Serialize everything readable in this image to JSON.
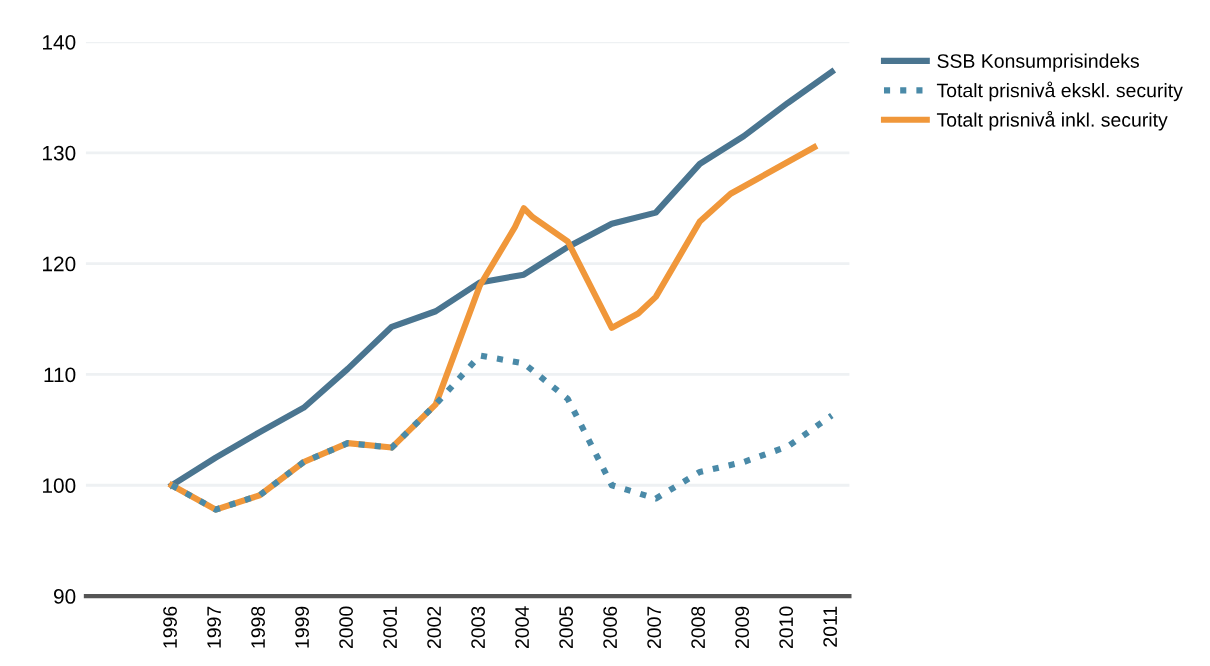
{
  "chart_data": {
    "type": "line",
    "x": [
      1996,
      1997,
      1998,
      1999,
      2000,
      2001,
      2002,
      2003,
      2004,
      2005,
      2006,
      2007,
      2008,
      2009,
      2010,
      2011
    ],
    "series": [
      {
        "name": "SSB Konsumprisindeks",
        "color": "#4a7590",
        "line_style": "solid",
        "values": [
          100,
          102.5,
          104.8,
          107,
          110.5,
          114.3,
          115.7,
          118.3,
          119,
          121.5,
          123.6,
          124.6,
          129,
          131.5,
          134.5,
          137.3
        ]
      },
      {
        "name": "Totalt prisnivå ekskl. security",
        "color": "#4a8aa8",
        "line_style": "dotted",
        "values": [
          100,
          97.8,
          99.1,
          102.1,
          103.8,
          103.4,
          107.3,
          111.7,
          111,
          107.8,
          100,
          98.8,
          101.2,
          102.1,
          103.5,
          106.3
        ]
      },
      {
        "name": "Totalt prisnivå inkl. security",
        "color": "#f0973a",
        "line_style": "solid",
        "x": [
          1996,
          1997,
          1998,
          1999,
          2000,
          2001,
          2002,
          2003,
          2003.8,
          2004,
          2004.2,
          2005,
          2006,
          2006.6,
          2007,
          2008,
          2008.7,
          2010.6
        ],
        "values": [
          100,
          97.8,
          99.1,
          102.1,
          103.8,
          103.4,
          107.3,
          118,
          123.3,
          125,
          124.2,
          122,
          114.2,
          115.5,
          117,
          123.8,
          126.3,
          130.5
        ]
      }
    ],
    "xlim": [
      1994.05,
      2011.4
    ],
    "xticks": [
      1996,
      1997,
      1998,
      1999,
      2000,
      2001,
      2002,
      2003,
      2004,
      2005,
      2006,
      2007,
      2008,
      2009,
      2010,
      2011
    ],
    "ylim": [
      90,
      140
    ],
    "yticks": [
      90,
      100,
      110,
      120,
      130,
      140
    ],
    "grid": "y",
    "legend": "top right"
  }
}
